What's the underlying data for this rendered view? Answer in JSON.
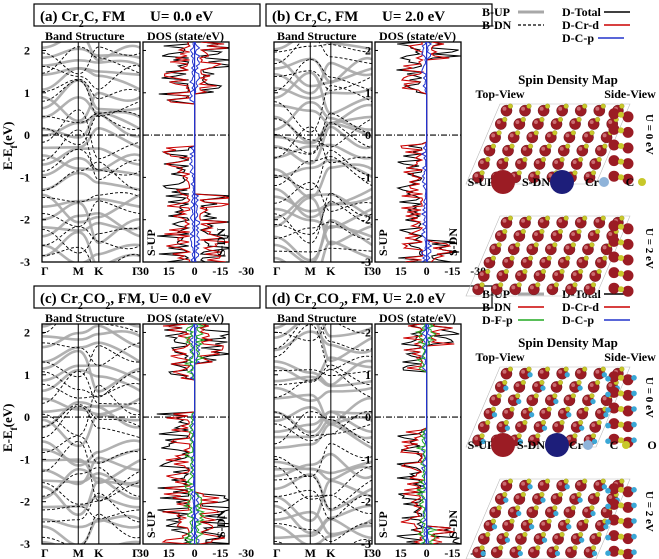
{
  "panels": [
    {
      "id": "a",
      "tag": "(a)",
      "comp_main": "Cr",
      "comp_sub1": "2",
      "comp_rest": "C",
      "comp_sub2": "",
      "comp_tail": "",
      "mag": ", FM",
      "u_text": "U= 0.0 eV",
      "has_F": false
    },
    {
      "id": "b",
      "tag": "(b)",
      "comp_main": "Cr",
      "comp_sub1": "2",
      "comp_rest": "C",
      "comp_sub2": "",
      "comp_tail": "",
      "mag": ", FM",
      "u_text": "U= 2.0 eV",
      "has_F": false
    },
    {
      "id": "c",
      "tag": "(c)",
      "comp_main": "Cr",
      "comp_sub1": "2",
      "comp_rest": "CO",
      "comp_sub2": "2",
      "comp_tail": "",
      "mag": ", FM, U= 0.0 eV",
      "u_text": "",
      "has_F": true
    },
    {
      "id": "d",
      "tag": "(d)",
      "comp_main": "Cr",
      "comp_sub1": "2",
      "comp_rest": "CO",
      "comp_sub2": "2",
      "comp_tail": "",
      "mag": ", FM, U= 2.0 eV",
      "u_text": "",
      "has_F": true
    }
  ],
  "subtitles": {
    "band": "Band Structure",
    "dos": "DOS (state/eV)"
  },
  "axis": {
    "ylabel_main": "E-E",
    "ylabel_sub": "f",
    "ylabel_unit": "(eV)",
    "y_ticks": [
      "2",
      "1",
      "0",
      "-1",
      "-2",
      "-3"
    ],
    "k_ticks": [
      "Γ",
      "M",
      "K",
      "Γ"
    ],
    "dos_ticks": [
      "30",
      "15",
      "0",
      "-15",
      "-30"
    ],
    "s_up": "S-UP",
    "s_dn": "S-DN"
  },
  "legend_top": {
    "items": [
      {
        "label": "B-UP",
        "style": "gray-solid"
      },
      {
        "label": "D-Total",
        "style": "black-solid"
      },
      {
        "label": "B-DN",
        "style": "black-dashed"
      },
      {
        "label": "D-Cr-d",
        "style": "red-solid"
      },
      {
        "label": "D-C-p",
        "style": "blue-solid"
      }
    ]
  },
  "legend_bottom": {
    "items": [
      {
        "label": "B-UP",
        "style": "gray-solid"
      },
      {
        "label": "D-Total",
        "style": "black-solid"
      },
      {
        "label": "B-DN",
        "style": "red-solid"
      },
      {
        "label": "D-Cr-d",
        "style": "red-solid"
      },
      {
        "label": "D-F-p",
        "style": "green-solid"
      },
      {
        "label": "D-C-p",
        "style": "blue-solid"
      }
    ]
  },
  "spin_map": {
    "title": "Spin Density Map",
    "top_view": "Top-View",
    "side_view": "Side-View",
    "u0": "U = 0 eV",
    "u2": "U = 2 eV",
    "key_top": [
      "S-UP",
      "S-DN",
      "Cr",
      "C"
    ],
    "key_bottom": [
      "S-UP",
      "S-DN",
      "Cr",
      "C",
      "O"
    ]
  },
  "colors": {
    "band": "#a8a8a8",
    "dos_total": "#000000",
    "dos_cr": "#cc0000",
    "dos_c": "#2233cc",
    "dos_f": "#22aa22",
    "atom_up": "#9b1c24",
    "atom_dn": "#1d1e7a",
    "atom_cr": "#8fb3d9",
    "atom_c": "#c8c82a",
    "atom_o": "#3aa7d6"
  }
}
